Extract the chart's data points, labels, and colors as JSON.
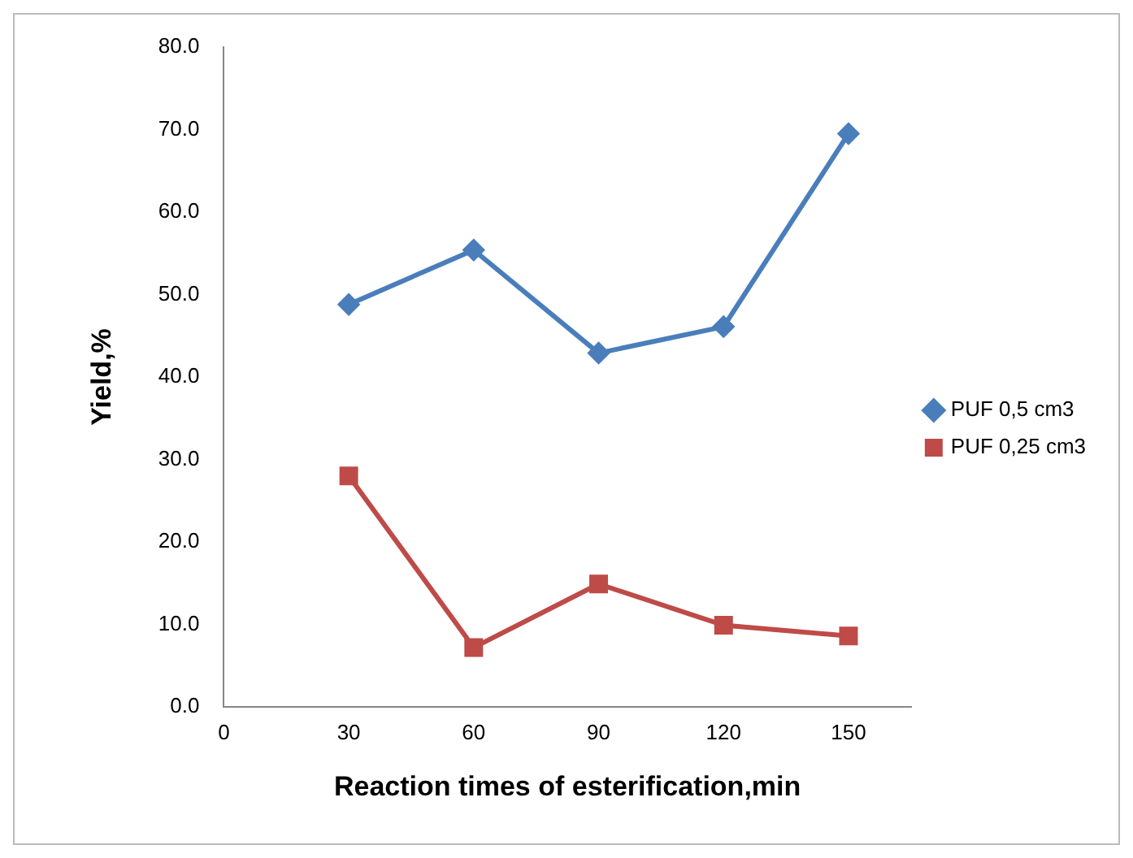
{
  "chart_data": {
    "type": "line",
    "xlabel": "Reaction times of esterification,min",
    "ylabel": "Yield,%",
    "x": [
      30,
      60,
      90,
      120,
      150
    ],
    "series": [
      {
        "name": "PUF 0,5 cm3",
        "color": "#4a7ebb",
        "values": [
          48.8,
          55.4,
          42.9,
          46.1,
          69.5
        ],
        "marker": "diamond"
      },
      {
        "name": "PUF 0,25 cm3",
        "color": "#be4b48",
        "values": [
          28.0,
          7.2,
          14.9,
          9.9,
          8.6
        ],
        "marker": "square"
      }
    ],
    "xlim": [
      0,
      165
    ],
    "xticks": [
      0,
      30,
      60,
      90,
      120,
      150
    ],
    "ylim": [
      0,
      80
    ],
    "yticks": [
      {
        "value": 0,
        "label": "0.0"
      },
      {
        "value": 10,
        "label": "10.0"
      },
      {
        "value": 20,
        "label": "20.0"
      },
      {
        "value": 30,
        "label": "30.0"
      },
      {
        "value": 40,
        "label": "40.0"
      },
      {
        "value": 50,
        "label": "50.0"
      },
      {
        "value": 60,
        "label": "60.0"
      },
      {
        "value": 70,
        "label": "70.0"
      },
      {
        "value": 80,
        "label": "80.0"
      }
    ],
    "grid": false,
    "legend": "right",
    "line_style": "solid"
  }
}
